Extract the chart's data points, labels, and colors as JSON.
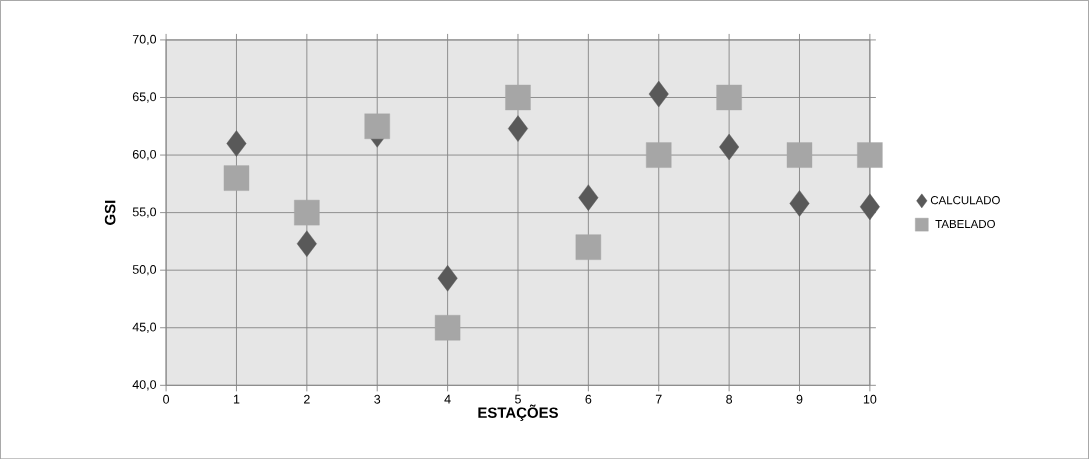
{
  "chart_data": {
    "type": "scatter",
    "xlabel": "ESTAÇÕES",
    "ylabel": "GSI",
    "x": [
      1,
      2,
      3,
      4,
      5,
      6,
      7,
      8,
      9,
      10
    ],
    "series": [
      {
        "name": "CALCULADO",
        "color": "#595959",
        "marker": "diamond",
        "values": [
          61.0,
          52.3,
          61.8,
          49.3,
          62.3,
          56.3,
          65.3,
          60.7,
          55.8,
          55.5
        ]
      },
      {
        "name": "TABELADO",
        "color": "#a6a6a6",
        "marker": "square",
        "values": [
          58.0,
          55.0,
          62.5,
          45.0,
          65.0,
          52.0,
          60.0,
          65.0,
          60.0,
          60.0
        ]
      }
    ],
    "xlim": [
      0,
      10
    ],
    "xticks": [
      0,
      1,
      2,
      3,
      4,
      5,
      6,
      7,
      8,
      9,
      10
    ],
    "ylim": [
      40,
      70
    ],
    "yticks": [
      {
        "value": 40,
        "label": "40,0"
      },
      {
        "value": 45,
        "label": "45,0"
      },
      {
        "value": 50,
        "label": "50,0"
      },
      {
        "value": 55,
        "label": "55,0"
      },
      {
        "value": 60,
        "label": "60,0"
      },
      {
        "value": 65,
        "label": "65,0"
      },
      {
        "value": 70,
        "label": "70,0"
      }
    ],
    "grid": true,
    "legend": "right"
  }
}
